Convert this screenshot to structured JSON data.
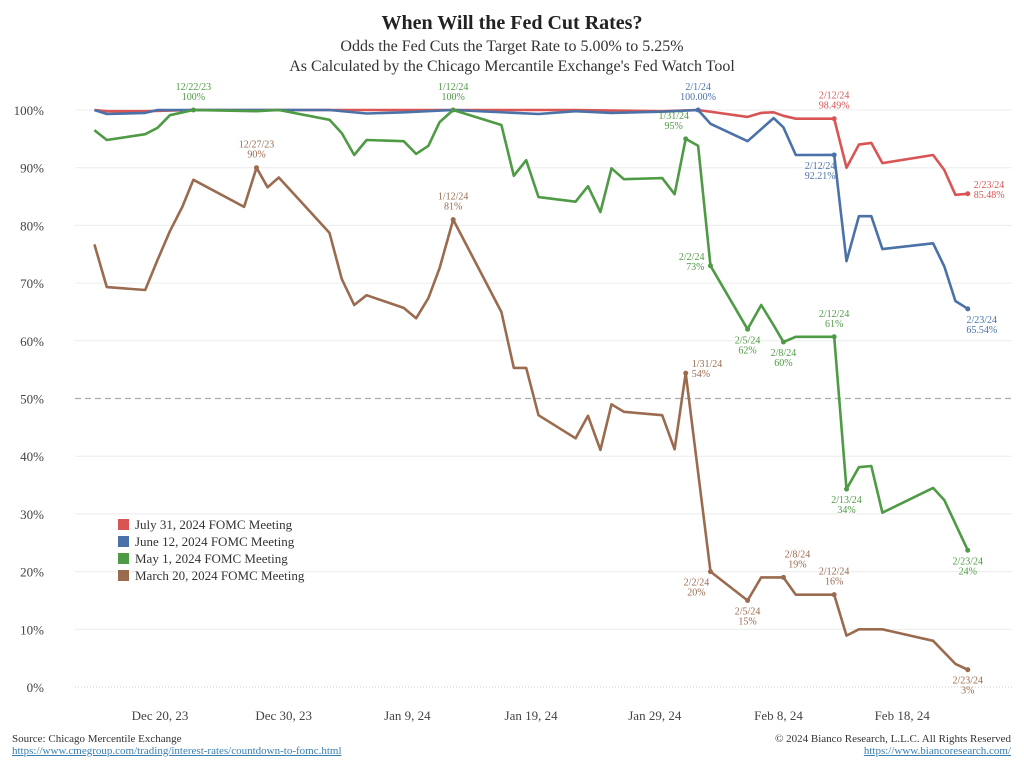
{
  "chart_data": {
    "type": "line",
    "title": "When Will the Fed Cut Rates?",
    "subtitle": [
      "Odds the Fed Cuts the Target Rate to 5.00% to 5.25%",
      "As Calculated by the Chicago Mercantile Exchange's Fed Watch Tool"
    ],
    "x_unit": "days since Dec 20, 2023",
    "xlim": [
      -6,
      68
    ],
    "ylim": [
      0,
      100
    ],
    "y_ticks": [
      "0%",
      "10%",
      "20%",
      "30%",
      "40%",
      "50%",
      "60%",
      "70%",
      "80%",
      "90%",
      "100%"
    ],
    "x_ticks": [
      {
        "day": 0,
        "label": "Dec 20, 23"
      },
      {
        "day": 10,
        "label": "Dec 30, 23"
      },
      {
        "day": 20,
        "label": "Jan 9, 24"
      },
      {
        "day": 30,
        "label": "Jan 19, 24"
      },
      {
        "day": 40,
        "label": "Jan 29, 24"
      },
      {
        "day": 50,
        "label": "Feb 8, 24"
      },
      {
        "day": 60,
        "label": "Feb 18, 24"
      }
    ],
    "reference_line": 50,
    "grid": true,
    "legend_position": "bottom-left",
    "series": [
      {
        "name": "July 31, 2024 FOMC Meeting",
        "color": "#d95555",
        "x": [
          -5.3,
          -4.3,
          -1.2,
          2.7,
          8.7,
          23.7,
          33.6,
          40.6,
          43.5,
          47.5,
          48.6,
          49.6,
          50.4,
          51.4,
          54.5,
          55.5,
          56.5,
          57.5,
          58.4,
          62.5,
          63.4,
          64.3,
          65.3
        ],
        "y": [
          100,
          99.8,
          99.8,
          100,
          100,
          100,
          100,
          99.8,
          100,
          98.8,
          99.5,
          99.6,
          99,
          98.5,
          98.49,
          90,
          94,
          94.3,
          90.8,
          92.2,
          89.6,
          85.3,
          85.48
        ]
      },
      {
        "name": "June 12, 2024 FOMC Meeting",
        "color": "#4a72a8",
        "x": [
          -5.3,
          -4.3,
          -1.2,
          -0.2,
          2.7,
          13.7,
          16.7,
          19.7,
          23.7,
          30.6,
          33.6,
          36.5,
          40.6,
          43.5,
          44.5,
          47.5,
          49.6,
          50.4,
          51.4,
          54.5,
          55.5,
          56.5,
          57.5,
          58.4,
          62.5,
          63.4,
          64.3,
          65.3
        ],
        "y": [
          100,
          99.3,
          99.5,
          100,
          100,
          100,
          99.4,
          99.6,
          100,
          99.3,
          99.8,
          99.5,
          99.7,
          100,
          97.6,
          94.6,
          98.6,
          97,
          92.2,
          92.21,
          73.8,
          81.6,
          81.6,
          75.9,
          76.9,
          72.9,
          66.9,
          65.54
        ]
      },
      {
        "name": "May 1, 2024 FOMC Meeting",
        "color": "#4f9a45",
        "x": [
          -5.3,
          -4.3,
          -1.2,
          -0.2,
          0.8,
          2.7,
          7.8,
          9.6,
          13.7,
          14.7,
          15.7,
          16.7,
          19.7,
          20.7,
          21.7,
          22.6,
          23.7,
          27.6,
          28.6,
          29.6,
          30.6,
          33.6,
          34.6,
          35.6,
          36.5,
          37.5,
          40.6,
          41.6,
          42.5,
          43.5,
          44.5,
          47.5,
          48.6,
          49.6,
          50.4,
          51.4,
          54.5,
          55.5,
          56.5,
          57.5,
          58.4,
          62.5,
          63.4,
          65.3
        ],
        "y": [
          96.5,
          94.8,
          95.8,
          96.9,
          99.1,
          100,
          99.8,
          100,
          98.3,
          96,
          92.2,
          94.8,
          94.6,
          92.4,
          93.8,
          97.9,
          100,
          97.4,
          88.6,
          91.3,
          84.9,
          84.1,
          86.8,
          82.3,
          89.9,
          88,
          88.2,
          85.4,
          95,
          93.8,
          73,
          62,
          66.2,
          62.7,
          59.8,
          60.7,
          60.7,
          34.3,
          38.1,
          38.3,
          30.2,
          34.5,
          32.4,
          23.7
        ]
      },
      {
        "name": "March 20, 2024 FOMC Meeting",
        "color": "#9a6b4f",
        "x": [
          -5.3,
          -4.3,
          -1.2,
          -0.2,
          0.8,
          1.8,
          2.7,
          6.8,
          7.8,
          8.7,
          9.6,
          13.7,
          14.7,
          15.7,
          16.7,
          19.7,
          20.7,
          21.7,
          22.6,
          23.7,
          27.6,
          28.6,
          29.6,
          30.6,
          33.6,
          34.6,
          35.6,
          36.5,
          37.5,
          40.6,
          41.6,
          42.5,
          44.5,
          47.5,
          48.6,
          50.4,
          51.4,
          54.5,
          55.5,
          56.5,
          58.4,
          62.5,
          64.3,
          65.3
        ],
        "y": [
          76.7,
          69.3,
          68.8,
          74,
          79,
          83.2,
          87.9,
          83.2,
          90,
          86.6,
          88.3,
          78.7,
          70.7,
          66.2,
          67.9,
          65.7,
          63.9,
          67.4,
          72.6,
          81,
          65,
          55.3,
          55.3,
          47.1,
          43.1,
          47,
          41.1,
          49,
          47.7,
          47.1,
          41.2,
          54.4,
          20,
          15,
          19,
          19,
          16,
          16,
          8.9,
          10,
          10,
          8,
          4,
          3
        ]
      }
    ],
    "annotations": [
      {
        "series": 2,
        "x": 2.7,
        "y": 100,
        "date": "12/22/23",
        "value": "100%",
        "pos": "above"
      },
      {
        "series": 3,
        "x": 7.8,
        "y": 90,
        "date": "12/27/23",
        "value": "90%",
        "pos": "above"
      },
      {
        "series": 2,
        "x": 23.7,
        "y": 100,
        "date": "1/12/24",
        "value": "100%",
        "pos": "above"
      },
      {
        "series": 3,
        "x": 23.7,
        "y": 81,
        "date": "1/12/24",
        "value": "81%",
        "pos": "above"
      },
      {
        "series": 1,
        "x": 43.5,
        "y": 100,
        "date": "2/1/24",
        "value": "100.00%",
        "pos": "above"
      },
      {
        "series": 0,
        "x": 54.5,
        "y": 98.49,
        "date": "2/12/24",
        "value": "98.49%",
        "pos": "above"
      },
      {
        "series": 2,
        "x": 42.5,
        "y": 95,
        "date": "1/31/24",
        "value": "95%",
        "pos": "aboveleft"
      },
      {
        "series": 1,
        "x": 54.5,
        "y": 92.21,
        "date": "2/12/24",
        "value": "92.21%",
        "pos": "belowleft"
      },
      {
        "series": 0,
        "x": 65.3,
        "y": 85.48,
        "date": "2/23/24",
        "value": "85.48%",
        "pos": "right"
      },
      {
        "series": 2,
        "x": 44.5,
        "y": 73,
        "date": "2/2/24",
        "value": "73%",
        "pos": "left"
      },
      {
        "series": 1,
        "x": 65.3,
        "y": 65.54,
        "date": "2/23/24",
        "value": "65.54%",
        "pos": "belowright"
      },
      {
        "series": 2,
        "x": 47.5,
        "y": 62,
        "date": "2/5/24",
        "value": "62%",
        "pos": "below"
      },
      {
        "series": 2,
        "x": 50.4,
        "y": 59.8,
        "date": "2/8/24",
        "value": "60%",
        "pos": "below"
      },
      {
        "series": 2,
        "x": 54.5,
        "y": 60.7,
        "date": "2/12/24",
        "value": "61%",
        "pos": "above"
      },
      {
        "series": 3,
        "x": 42.5,
        "y": 54.4,
        "date": "1/31/24",
        "value": "54%",
        "pos": "right"
      },
      {
        "series": 2,
        "x": 55.5,
        "y": 34.3,
        "date": "2/13/24",
        "value": "34%",
        "pos": "below"
      },
      {
        "series": 2,
        "x": 65.3,
        "y": 23.7,
        "date": "2/23/24",
        "value": "24%",
        "pos": "below"
      },
      {
        "series": 3,
        "x": 44.5,
        "y": 20,
        "date": "2/2/24",
        "value": "20%",
        "pos": "belowleft"
      },
      {
        "series": 3,
        "x": 47.5,
        "y": 15,
        "date": "2/5/24",
        "value": "15%",
        "pos": "below"
      },
      {
        "series": 3,
        "x": 50.4,
        "y": 19,
        "date": "2/8/24",
        "value": "19%",
        "pos": "aboveright"
      },
      {
        "series": 3,
        "x": 54.5,
        "y": 16,
        "date": "2/12/24",
        "value": "16%",
        "pos": "above"
      },
      {
        "series": 3,
        "x": 65.3,
        "y": 3,
        "date": "2/23/24",
        "value": "3%",
        "pos": "below"
      }
    ]
  },
  "footer": {
    "source": "Source: Chicago Mercentile Exchange",
    "source_url": "https://www.cmegroup.com/trading/interest-rates/countdown-to-fomc.html",
    "copyright": "© 2024 Bianco Research, L.L.C. All Rights Reserved",
    "site_url": "https://www.biancoresearch.com/"
  }
}
